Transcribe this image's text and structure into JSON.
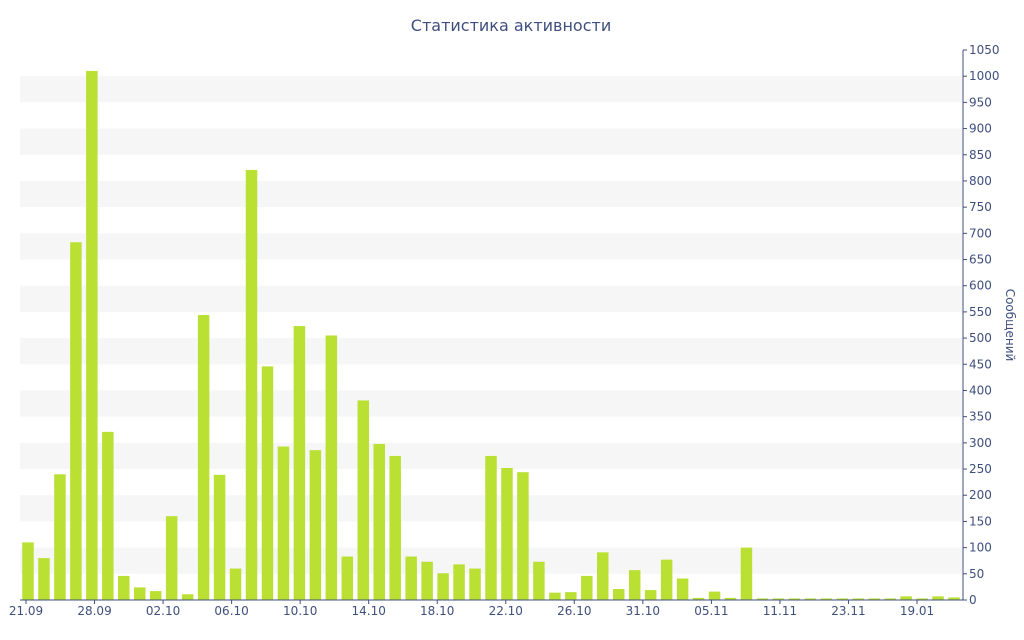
{
  "chart_data": {
    "type": "bar",
    "title": "Статистика активности",
    "ylabel": "Сообщений",
    "xlabel": "",
    "ylim": [
      0,
      1050
    ],
    "y_ticks": [
      0,
      50,
      100,
      150,
      200,
      250,
      300,
      350,
      400,
      450,
      500,
      550,
      600,
      650,
      700,
      750,
      800,
      850,
      900,
      950,
      1000,
      1050
    ],
    "x_tick_labels": [
      "21.09",
      "28.09",
      "02.10",
      "06.10",
      "10.10",
      "14.10",
      "18.10",
      "22.10",
      "26.10",
      "31.10",
      "05.11",
      "11.11",
      "23.11",
      "19.01"
    ],
    "values": [
      110,
      80,
      240,
      683,
      1010,
      321,
      46,
      24,
      17,
      160,
      11,
      544,
      239,
      60,
      821,
      446,
      293,
      523,
      286,
      505,
      83,
      381,
      298,
      275,
      83,
      73,
      51,
      68,
      60,
      275,
      252,
      244,
      73,
      14,
      15,
      46,
      91,
      21,
      57,
      19,
      77,
      41,
      4,
      16,
      4,
      100,
      3,
      3,
      3,
      3,
      3,
      3,
      3,
      3,
      3,
      7,
      3,
      7,
      5
    ],
    "grid": true,
    "legend": "none",
    "bar_color": "#b9e033",
    "stripe_color": "#f6f6f6",
    "axis_color": "#3f4f7d"
  }
}
